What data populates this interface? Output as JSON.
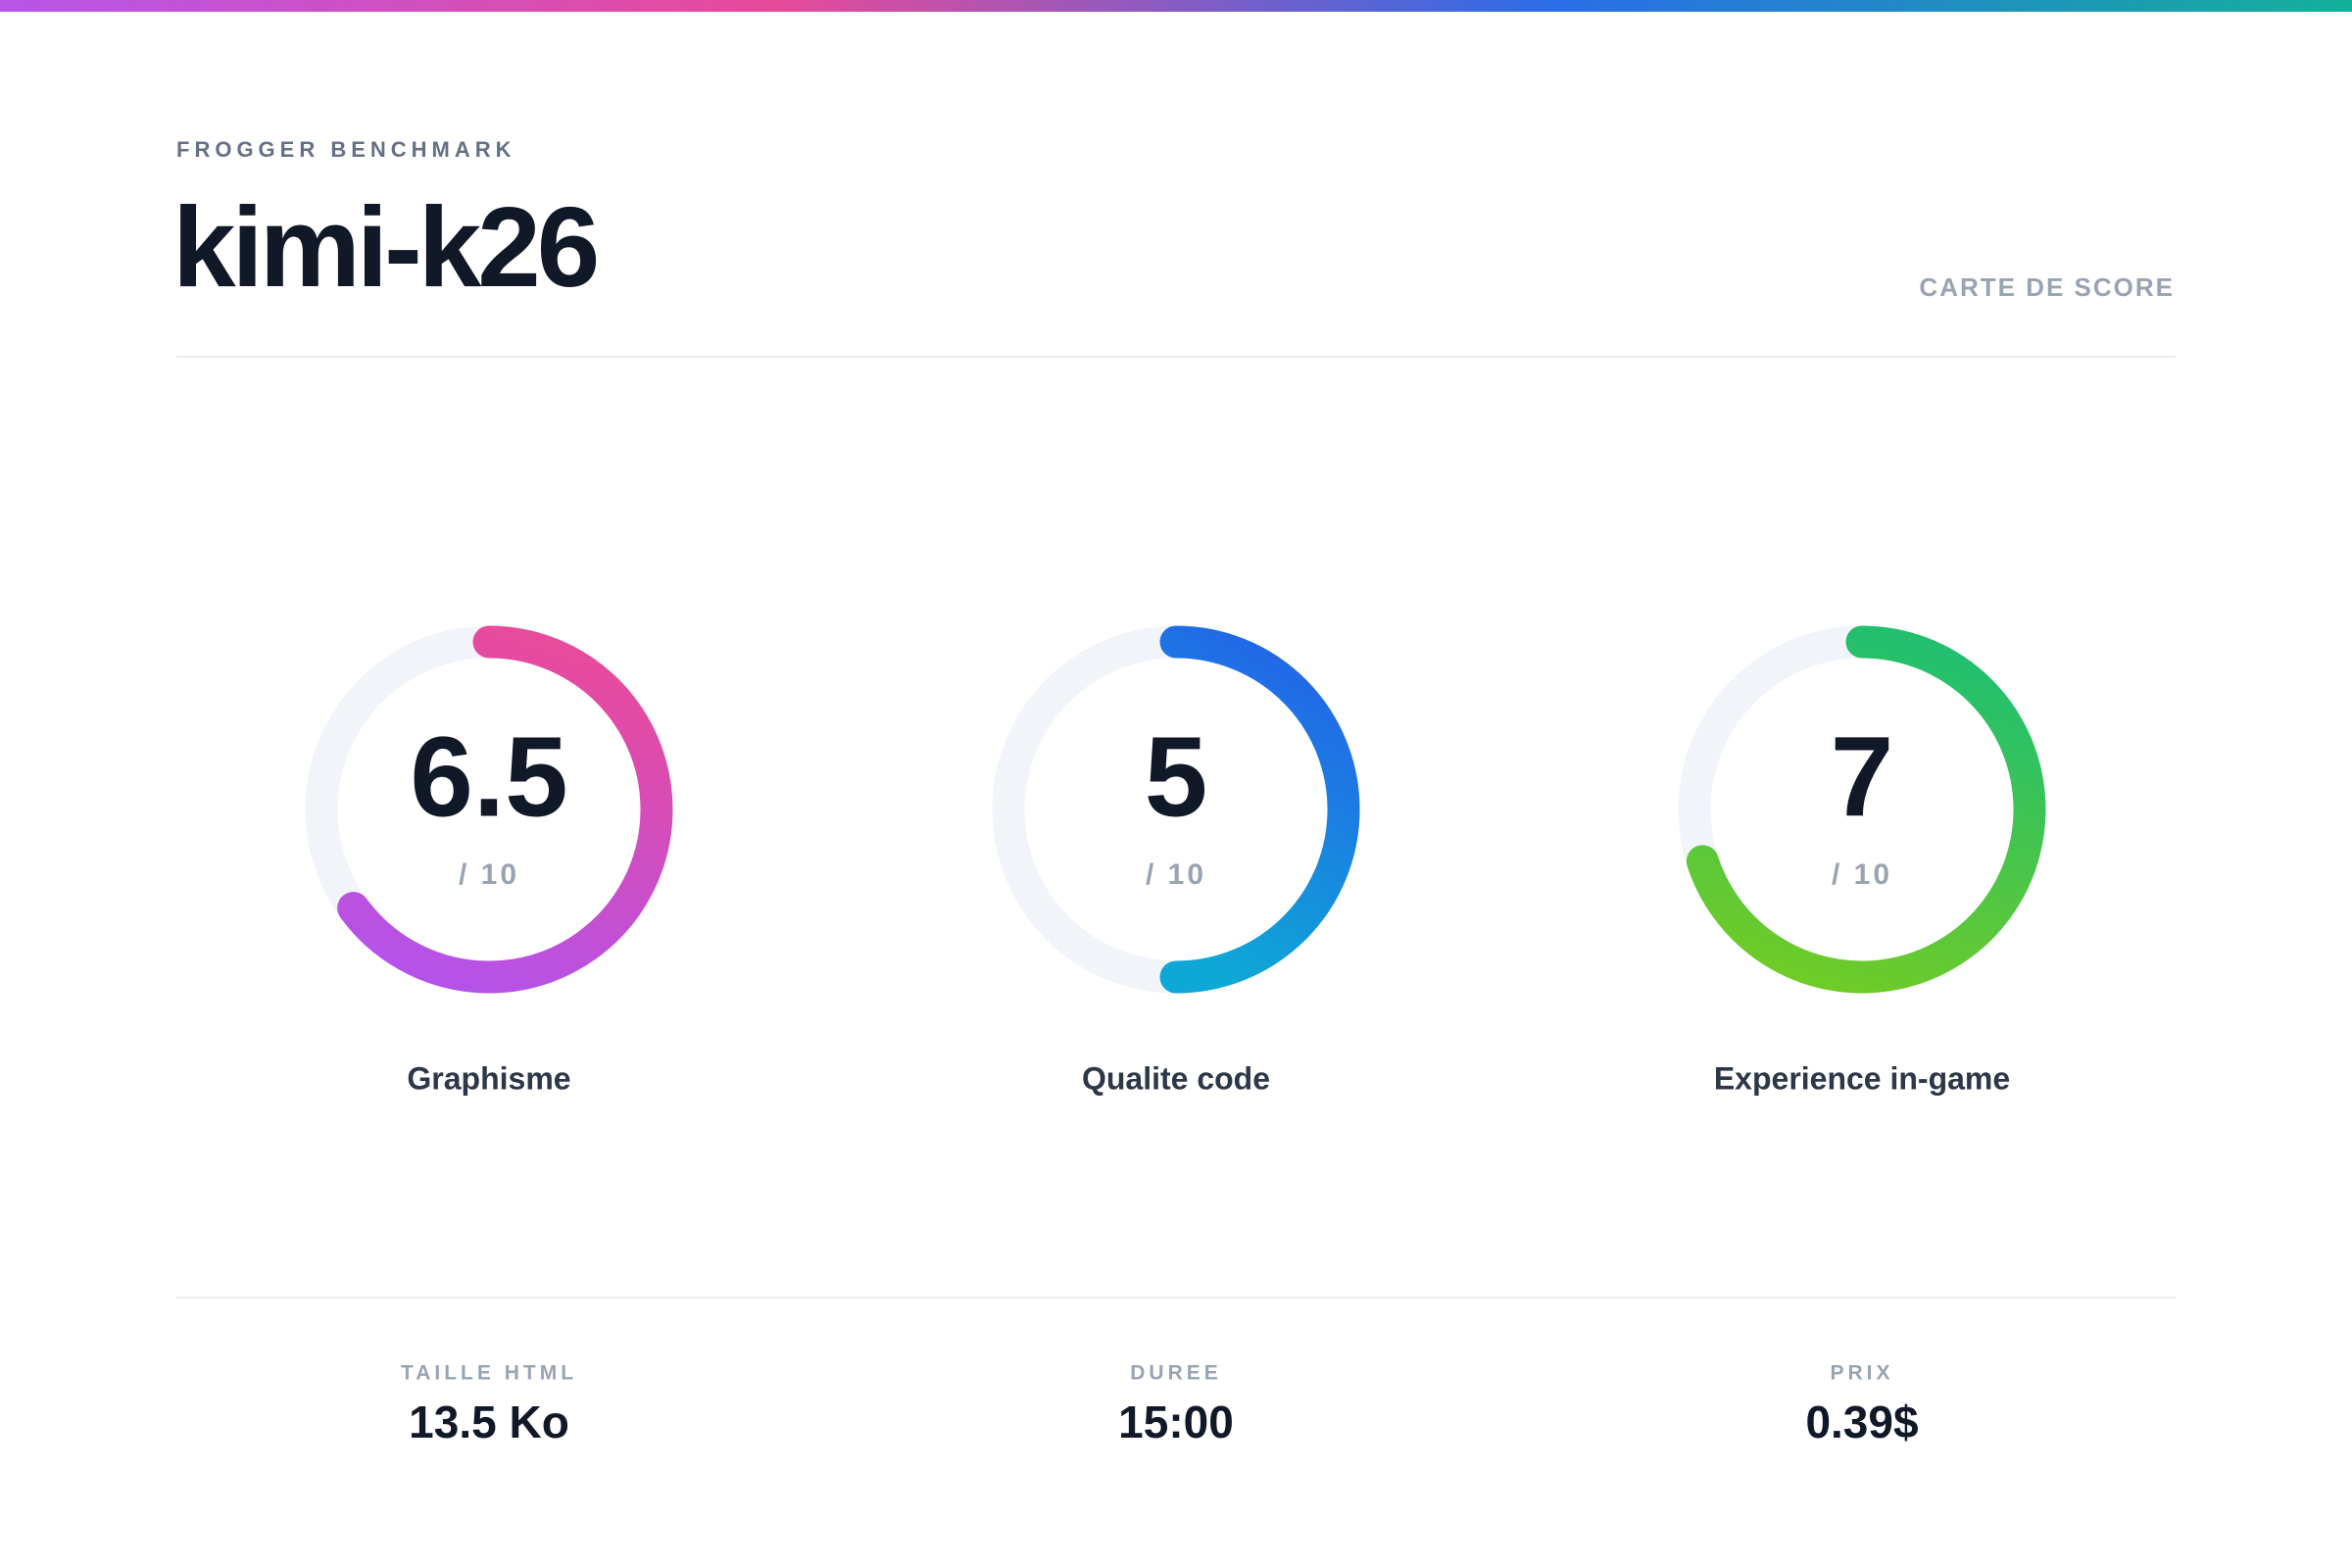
{
  "header": {
    "eyebrow": "FROGGER BENCHMARK",
    "title": "kimi-k26",
    "tag": "CARTE DE SCORE"
  },
  "scores": [
    {
      "label": "Graphisme",
      "value": 6.5,
      "max": {
        "value": 10,
        "label": "/ 10"
      },
      "colors": [
        "#e84a9c",
        "#b552e8"
      ]
    },
    {
      "label": "Qualite code",
      "value": 5,
      "max": {
        "value": 10,
        "label": "/ 10"
      },
      "colors": [
        "#2366e8",
        "#0ea8d6"
      ]
    },
    {
      "label": "Experience in-game",
      "value": 7,
      "max": {
        "value": 10,
        "label": "/ 10"
      },
      "colors": [
        "#22bf6e",
        "#6fcb28"
      ]
    }
  ],
  "stats": [
    {
      "label": "TAILLE HTML",
      "value": "13.5 Ko"
    },
    {
      "label": "DUREE",
      "value": "15:00"
    },
    {
      "label": "PRIX",
      "value": "0.39$"
    }
  ]
}
